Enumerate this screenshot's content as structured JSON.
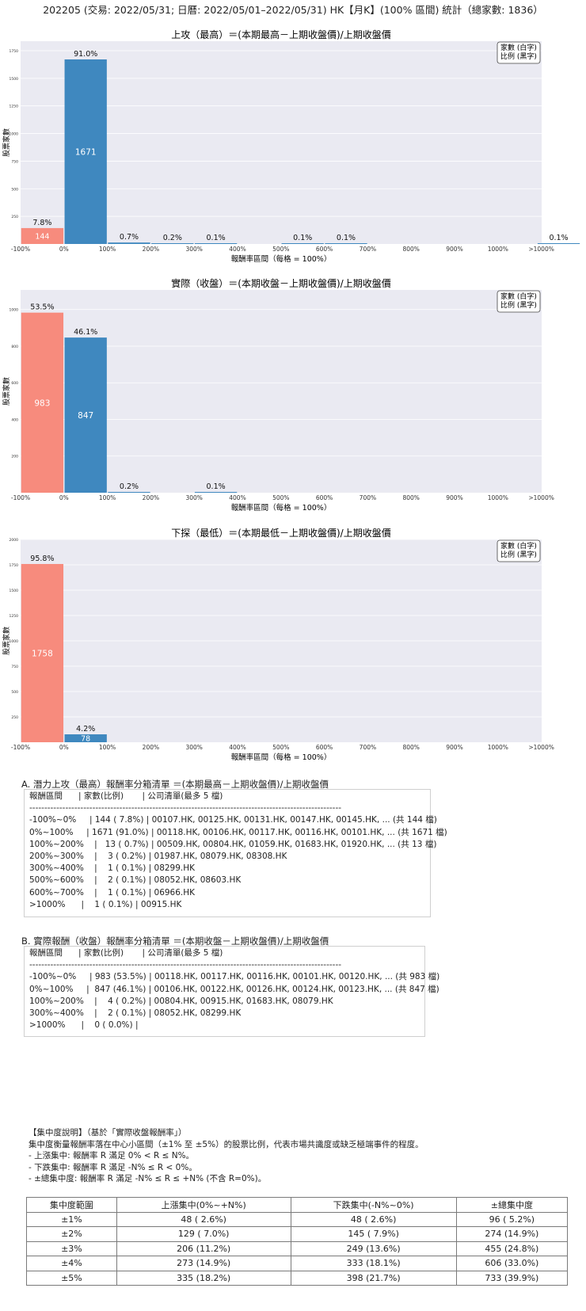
{
  "title": "202205 (交易: 2022/05/31; 日曆: 2022/05/01–2022/05/31) HK【月K】(100% 區間) 統計（總家數: 1836）",
  "legend_lines": [
    "家數 (白字)",
    "比例 (黑字)"
  ],
  "colors": {
    "negative": "#f78b7d",
    "positive": "#3f88bf",
    "plot_bg": "#eaeaf2",
    "gridline": "#ffffff"
  },
  "chart_data": [
    {
      "type": "bar",
      "title": "上攻（最高）＝(本期最高－上期收盤價)/上期收盤價",
      "xlabel": "報酬率區間（每格 = 100%）",
      "ylabel": "股票家數",
      "x_ticks": [
        "-100%",
        "0%",
        "100%",
        "200%",
        "300%",
        "400%",
        "500%",
        "600%",
        "700%",
        "800%",
        "900%",
        "1000%",
        ">1000%"
      ],
      "y_ticks": [
        "250",
        "500",
        "750",
        "1000",
        "1250",
        "1500",
        "1750"
      ],
      "ylim": [
        0,
        1836
      ],
      "bars": [
        {
          "bin": "-100%~0%",
          "count": 144,
          "count_label": "144",
          "pct": "7.8%",
          "sign": "negative"
        },
        {
          "bin": "0%~100%",
          "count": 1671,
          "count_label": "1671",
          "pct": "91.0%",
          "sign": "positive"
        },
        {
          "bin": "100%~200%",
          "count": 13,
          "count_label": "",
          "pct": "0.7%",
          "sign": "positive"
        },
        {
          "bin": "200%~300%",
          "count": 3,
          "count_label": "",
          "pct": "0.2%",
          "sign": "positive"
        },
        {
          "bin": "300%~400%",
          "count": 1,
          "count_label": "",
          "pct": "0.1%",
          "sign": "positive"
        },
        {
          "bin": "500%~600%",
          "count": 2,
          "count_label": "",
          "pct": "0.1%",
          "sign": "positive"
        },
        {
          "bin": "600%~700%",
          "count": 1,
          "count_label": "",
          "pct": "0.1%",
          "sign": "positive"
        },
        {
          "bin": ">1000%",
          "count": 1,
          "count_label": "",
          "pct": "0.1%",
          "sign": "positive"
        }
      ]
    },
    {
      "type": "bar",
      "title": "實際（收盤）＝(本期收盤－上期收盤價)/上期收盤價",
      "xlabel": "報酬率區間（每格 = 100%）",
      "ylabel": "股票家數",
      "x_ticks": [
        "-100%",
        "0%",
        "100%",
        "200%",
        "300%",
        "400%",
        "500%",
        "600%",
        "700%",
        "800%",
        "900%",
        "1000%",
        ">1000%"
      ],
      "y_ticks": [
        "200",
        "400",
        "600",
        "800",
        "1000"
      ],
      "ylim": [
        0,
        1107
      ],
      "bars": [
        {
          "bin": "-100%~0%",
          "count": 983,
          "count_label": "983",
          "pct": "53.5%",
          "sign": "negative"
        },
        {
          "bin": "0%~100%",
          "count": 847,
          "count_label": "847",
          "pct": "46.1%",
          "sign": "positive"
        },
        {
          "bin": "100%~200%",
          "count": 4,
          "count_label": "",
          "pct": "0.2%",
          "sign": "positive"
        },
        {
          "bin": "300%~400%",
          "count": 2,
          "count_label": "",
          "pct": "0.1%",
          "sign": "positive"
        }
      ]
    },
    {
      "type": "bar",
      "title": "下探（最低）＝(本期最低－上期收盤價)/上期收盤價",
      "xlabel": "報酬率區間（每格 = 100%）",
      "ylabel": "股票家數",
      "x_ticks": [
        "-100%",
        "0%",
        "100%",
        "200%",
        "300%",
        "400%",
        "500%",
        "600%",
        "700%",
        "800%",
        "900%",
        "1000%",
        ">1000%"
      ],
      "y_ticks": [
        "250",
        "500",
        "750",
        "1000",
        "1250",
        "1500",
        "1750",
        "2000"
      ],
      "ylim": [
        0,
        2000
      ],
      "bars": [
        {
          "bin": "-100%~0%",
          "count": 1758,
          "count_label": "1758",
          "pct": "95.8%",
          "sign": "negative"
        },
        {
          "bin": "0%~100%",
          "count": 78,
          "count_label": "78",
          "pct": "4.2%",
          "sign": "positive"
        }
      ]
    }
  ],
  "list_a": {
    "heading": "A. 潛力上攻（最高）報酬率分箱清單 ＝(本期最高－上期收盤價)/上期收盤價",
    "lines": [
      "報酬區間      | 家數(比例)       | 公司清單(最多 5 檔)",
      "--------------------------------------------------------------------------------------------------------",
      "-100%~0%     | 144 ( 7.8%) | 00107.HK, 00125.HK, 00131.HK, 00147.HK, 00145.HK, ... (共 144 檔)",
      "0%~100%     | 1671 (91.0%) | 00118.HK, 00106.HK, 00117.HK, 00116.HK, 00101.HK, ... (共 1671 檔)",
      "100%~200%    |   13 ( 0.7%) | 00509.HK, 00804.HK, 01059.HK, 01683.HK, 01920.HK, ... (共 13 檔)",
      "200%~300%    |    3 ( 0.2%) | 01987.HK, 08079.HK, 08308.HK",
      "300%~400%    |    1 ( 0.1%) | 08299.HK",
      "500%~600%    |    2 ( 0.1%) | 08052.HK, 08603.HK",
      "600%~700%    |    1 ( 0.1%) | 06966.HK",
      ">1000%      |    1 ( 0.1%) | 00915.HK"
    ]
  },
  "list_b": {
    "heading": "B. 實際報酬（收盤）報酬率分箱清單 ＝(本期收盤－上期收盤價)/上期收盤價",
    "lines": [
      "報酬區間      | 家數(比例)       | 公司清單(最多 5 檔)",
      "--------------------------------------------------------------------------------------------------------",
      "-100%~0%     | 983 (53.5%) | 00118.HK, 00117.HK, 00116.HK, 00101.HK, 00120.HK, ... (共 983 檔)",
      "0%~100%     |  847 (46.1%) | 00106.HK, 00122.HK, 00126.HK, 00124.HK, 00123.HK, ... (共 847 檔)",
      "100%~200%    |    4 ( 0.2%) | 00804.HK, 00915.HK, 01683.HK, 08079.HK",
      "300%~400%    |    2 ( 0.1%) | 08052.HK, 08299.HK",
      ">1000%      |    0 ( 0.0%) |"
    ]
  },
  "concentration": {
    "notes": [
      "【集中度說明】（基於「實際收盤報酬率」）",
      "集中度衡量報酬率落在中心小區間（±1% 至 ±5%）的股票比例，代表市場共識度或缺乏極端事件的程度。",
      "- 上漲集中: 報酬率 R 滿足 0% < R ≤ N%。",
      "- 下跌集中: 報酬率 R 滿足 -N% ≤ R < 0%。",
      "- ±總集中度: 報酬率 R 滿足 -N% ≤ R ≤ +N% (不含 R=0%)。"
    ],
    "headers": [
      "集中度範圍",
      "上漲集中(0%~+N%)",
      "下跌集中(-N%~0%)",
      "±總集中度"
    ],
    "rows": [
      [
        "±1%",
        "48 ( 2.6%)",
        "48 ( 2.6%)",
        "96 ( 5.2%)"
      ],
      [
        "±2%",
        "129 ( 7.0%)",
        "145 ( 7.9%)",
        "274 (14.9%)"
      ],
      [
        "±3%",
        "206 (11.2%)",
        "249 (13.6%)",
        "455 (24.8%)"
      ],
      [
        "±4%",
        "273 (14.9%)",
        "333 (18.1%)",
        "606 (33.0%)"
      ],
      [
        "±5%",
        "335 (18.2%)",
        "398 (21.7%)",
        "733 (39.9%)"
      ]
    ]
  }
}
